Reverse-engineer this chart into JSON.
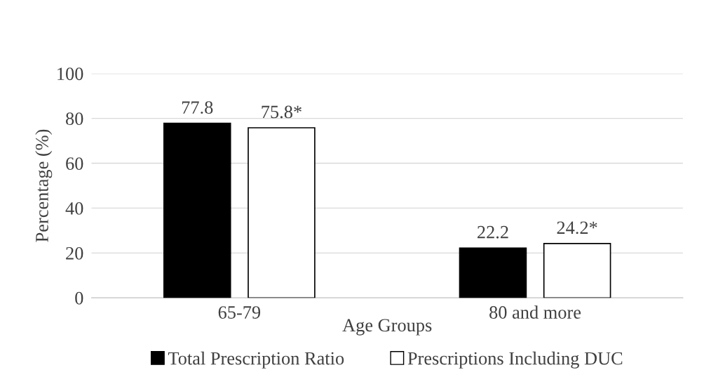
{
  "chart_data": {
    "type": "bar",
    "xlabel": "Age Groups",
    "ylabel": "Percentage (%)",
    "categories": [
      "65-79",
      "80 and more"
    ],
    "series": [
      {
        "name": "Total Prescription Ratio",
        "color": "#000000",
        "values": [
          77.8,
          22.2
        ],
        "value_labels": [
          "77.8",
          "22.2"
        ]
      },
      {
        "name": "Prescriptions Including DUC",
        "color": "#ffffff",
        "values": [
          75.8,
          24.2
        ],
        "value_labels": [
          "75.8*",
          "24.2*"
        ]
      }
    ],
    "ylim": [
      0,
      100
    ],
    "yticks": [
      0,
      20,
      40,
      60,
      80,
      100
    ],
    "grid": "y",
    "legend": "bottom"
  }
}
